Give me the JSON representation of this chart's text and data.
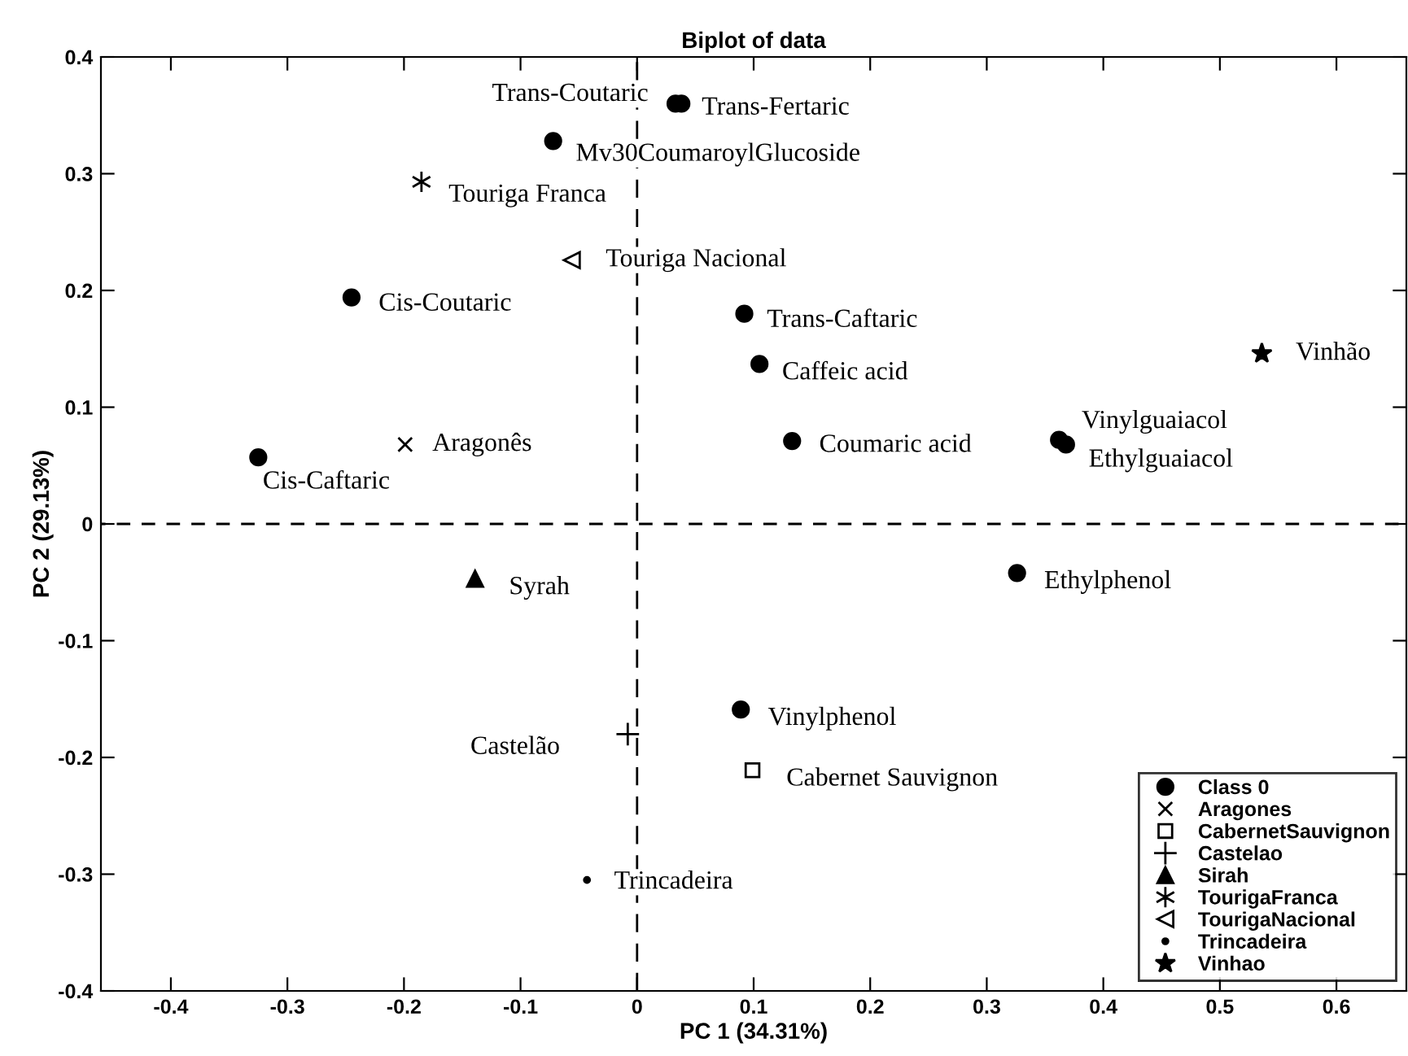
{
  "chart_data": {
    "type": "scatter",
    "title": "Biplot of data",
    "xlabel": "PC 1 (34.31%)",
    "ylabel": "PC 2 (29.13%)",
    "xlim": [
      -0.46,
      0.66
    ],
    "ylim": [
      -0.4,
      0.4
    ],
    "xticks": [
      -0.4,
      -0.3,
      -0.2,
      -0.1,
      0,
      0.1,
      0.2,
      0.3,
      0.4,
      0.5,
      0.6
    ],
    "yticks": [
      -0.4,
      -0.3,
      -0.2,
      -0.1,
      0,
      0.1,
      0.2,
      0.3,
      0.4
    ],
    "grid": false,
    "legend": "bottom right",
    "ref_lines": [
      {
        "axis": "x",
        "value": 0,
        "line_style": "dashed",
        "color": "#000000"
      },
      {
        "axis": "y",
        "value": 0,
        "line_style": "dashed",
        "color": "#000000"
      }
    ],
    "series": [
      {
        "name": "Class 0",
        "color": "#000000",
        "marker": "circle",
        "x": [
          0.033,
          0.038,
          -0.072,
          -0.245,
          -0.325,
          0.092,
          0.105,
          0.133,
          0.362,
          0.368,
          0.326,
          0.089
        ],
        "values": [
          0.36,
          0.36,
          0.328,
          0.194,
          0.057,
          0.18,
          0.137,
          0.071,
          0.072,
          0.068,
          -0.042,
          -0.159
        ]
      },
      {
        "name": "Aragones",
        "color": "#000000",
        "marker": "x",
        "x": [
          -0.199
        ],
        "values": [
          0.068
        ]
      },
      {
        "name": "CabernetSauvignon",
        "color": "#000000",
        "marker": "square",
        "x": [
          0.099
        ],
        "values": [
          -0.211
        ]
      },
      {
        "name": "Castelao",
        "color": "#000000",
        "marker": "plus",
        "x": [
          -0.008
        ],
        "values": [
          -0.18
        ]
      },
      {
        "name": "Sirah",
        "color": "#000000",
        "marker": "triangle",
        "x": [
          -0.139
        ],
        "values": [
          -0.047
        ]
      },
      {
        "name": "TourigaFranca",
        "color": "#000000",
        "marker": "cross",
        "x": [
          -0.185
        ],
        "values": [
          0.293
        ]
      },
      {
        "name": "TourigaNacional",
        "color": "#000000",
        "marker": "triangle-left",
        "x": [
          -0.056
        ],
        "values": [
          0.226
        ]
      },
      {
        "name": "Trincadeira",
        "color": "#000000",
        "marker": "point",
        "x": [
          -0.043
        ],
        "values": [
          -0.305
        ]
      },
      {
        "name": "Vinhao",
        "color": "#000000",
        "marker": "star",
        "x": [
          0.536
        ],
        "values": [
          0.146
        ]
      }
    ],
    "annotations": [
      {
        "text": "Trans-Coutaric",
        "x": 0.033,
        "y": 0.36
      },
      {
        "text": "Trans-Fertaric",
        "x": 0.038,
        "y": 0.36
      },
      {
        "text": "Mv30CoumaroylGlucoside",
        "x": -0.072,
        "y": 0.328
      },
      {
        "text": "Cis-Coutaric",
        "x": -0.245,
        "y": 0.194
      },
      {
        "text": "Cis-Caftaric",
        "x": -0.325,
        "y": 0.057
      },
      {
        "text": "Trans-Caftaric",
        "x": 0.092,
        "y": 0.18
      },
      {
        "text": "Caffeic acid",
        "x": 0.105,
        "y": 0.137
      },
      {
        "text": "Coumaric acid",
        "x": 0.133,
        "y": 0.071
      },
      {
        "text": "Vinylguaiacol",
        "x": 0.362,
        "y": 0.072
      },
      {
        "text": "Ethylguaiacol",
        "x": 0.368,
        "y": 0.068
      },
      {
        "text": "Ethylphenol",
        "x": 0.326,
        "y": -0.042
      },
      {
        "text": "Vinylphenol",
        "x": 0.089,
        "y": -0.159
      },
      {
        "text": "Aragonês",
        "x": -0.199,
        "y": 0.068
      },
      {
        "text": "Cabernet Sauvignon",
        "x": 0.099,
        "y": -0.211
      },
      {
        "text": "Castelão",
        "x": -0.008,
        "y": -0.18
      },
      {
        "text": "Syrah",
        "x": -0.139,
        "y": -0.047
      },
      {
        "text": "Touriga Franca",
        "x": -0.185,
        "y": 0.293
      },
      {
        "text": "Touriga Nacional",
        "x": -0.056,
        "y": 0.226
      },
      {
        "text": "Trincadeira",
        "x": -0.043,
        "y": -0.305
      },
      {
        "text": "Vinhão",
        "x": 0.536,
        "y": 0.146
      }
    ]
  }
}
